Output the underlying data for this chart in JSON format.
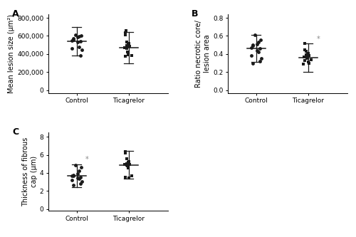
{
  "panel_A": {
    "label": "A",
    "ylabel": "Mean lesion size (μm²)",
    "yticks": [
      0,
      200000,
      400000,
      600000,
      800000
    ],
    "yticklabels": [
      "0",
      "200,000",
      "400,000",
      "600,000",
      "800,000"
    ],
    "ylim": [
      -30000,
      840000
    ],
    "groups": [
      "Control",
      "Ticagrelor"
    ],
    "control_points": [
      610000,
      605000,
      595000,
      585000,
      575000,
      560000,
      550000,
      540000,
      530000,
      480000,
      465000,
      450000,
      385000
    ],
    "ticagrelor_points": [
      655000,
      635000,
      615000,
      535000,
      515000,
      505000,
      495000,
      485000,
      472000,
      462000,
      425000,
      392000,
      382000,
      372000
    ],
    "control_mean": 540000,
    "control_sd": 155000,
    "ticagrelor_mean": 470000,
    "ticagrelor_sd": 175000,
    "significant": false
  },
  "panel_B": {
    "label": "B",
    "ylabel": "Ratio necrotic core/\nlesion area",
    "yticks": [
      0.0,
      0.2,
      0.4,
      0.6,
      0.8
    ],
    "yticklabels": [
      "0.0",
      "0.2",
      "0.4",
      "0.6",
      "0.8"
    ],
    "ylim": [
      -0.03,
      0.84
    ],
    "groups": [
      "Control",
      "Ticagrelor"
    ],
    "control_points": [
      0.61,
      0.56,
      0.53,
      0.51,
      0.5,
      0.49,
      0.47,
      0.46,
      0.44,
      0.42,
      0.38,
      0.35,
      0.32,
      0.3
    ],
    "ticagrelor_points": [
      0.52,
      0.45,
      0.43,
      0.41,
      0.4,
      0.39,
      0.38,
      0.37,
      0.37,
      0.36,
      0.35,
      0.34,
      0.33,
      0.31,
      0.3,
      0.29
    ],
    "control_mean": 0.46,
    "control_sd": 0.15,
    "ticagrelor_mean": 0.36,
    "ticagrelor_sd": 0.155,
    "significant": true,
    "sig_group": "ticagrelor"
  },
  "panel_C": {
    "label": "C",
    "ylabel": "Thickness of fibrous\ncap (μm)",
    "yticks": [
      0,
      2,
      4,
      6,
      8
    ],
    "yticklabels": [
      "0",
      "2",
      "4",
      "6",
      "8"
    ],
    "ylim": [
      -0.2,
      8.5
    ],
    "groups": [
      "Control",
      "Ticagrelor"
    ],
    "control_points": [
      4.85,
      4.6,
      4.2,
      3.9,
      3.8,
      3.7,
      3.65,
      3.55,
      3.45,
      3.35,
      3.2,
      3.05,
      2.85,
      2.7
    ],
    "ticagrelor_points": [
      6.35,
      6.2,
      5.6,
      5.25,
      5.15,
      5.05,
      4.95,
      4.95,
      4.85,
      4.75,
      4.55,
      3.65,
      3.55,
      3.45
    ],
    "control_mean": 3.7,
    "control_sd": 1.25,
    "ticagrelor_mean": 4.9,
    "ticagrelor_sd": 1.55,
    "significant": true,
    "sig_group": "control"
  },
  "style": {
    "control_marker": "o",
    "ticagrelor_marker": "s",
    "marker_size": 3.5,
    "marker_color": "#1a1a1a",
    "line_color": "#1a1a1a",
    "fontsize": 7,
    "tick_fontsize": 6.5,
    "label_fontsize": 9
  }
}
